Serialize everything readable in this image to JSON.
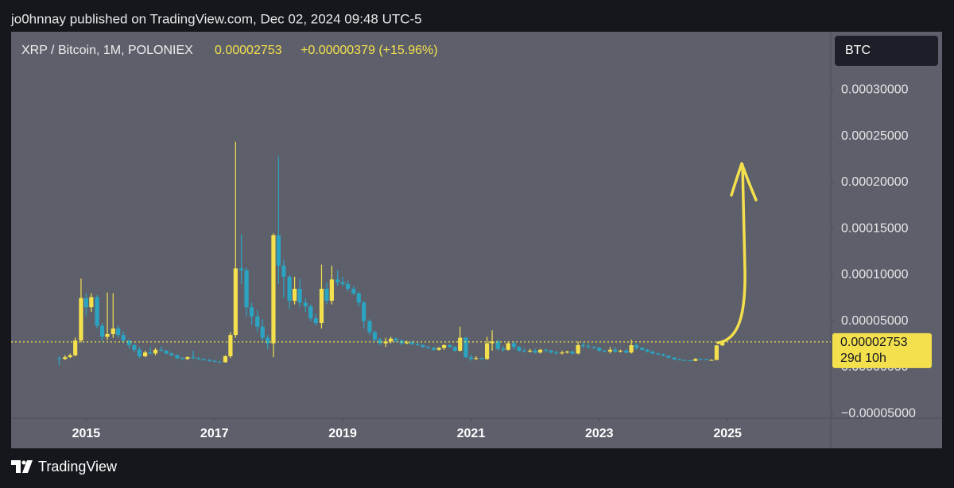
{
  "header": {
    "published": "jo0hnnay published on TradingView.com, Dec 02, 2024 09:48 UTC-5"
  },
  "footer": {
    "brand": "TradingView"
  },
  "chart_data": {
    "type": "candlestick",
    "symbol": "XRP / Bitcoin, 1M, POLONIEX",
    "last_price": "0.00002753",
    "change": "+0.00000379 (+15.96%)",
    "countdown": "29d 10h",
    "currency": "BTC",
    "up_color": "#f4e04d",
    "down_color": "#2ba4c2",
    "xlim": [
      2013.83,
      2026.61
    ],
    "xticks": [
      2015,
      2017,
      2019,
      2021,
      2023,
      2025
    ],
    "ylim": [
      -5.5e-05,
      0.000363
    ],
    "yticks": [
      {
        "value": 0.0003,
        "label": "0.00030000"
      },
      {
        "value": 0.00025,
        "label": "0.00025000"
      },
      {
        "value": 0.0002,
        "label": "0.00020000"
      },
      {
        "value": 0.00015,
        "label": "0.00015000"
      },
      {
        "value": 0.0001,
        "label": "0.00010000"
      },
      {
        "value": 5e-05,
        "label": "0.00005000"
      },
      {
        "value": 0,
        "label": "0.00000000"
      },
      {
        "value": -5e-05,
        "label": "−0.00005000"
      }
    ],
    "x": [
      2014.58,
      2014.67,
      2014.75,
      2014.83,
      2014.92,
      2015,
      2015.08,
      2015.17,
      2015.25,
      2015.33,
      2015.42,
      2015.5,
      2015.58,
      2015.67,
      2015.75,
      2015.83,
      2015.92,
      2016,
      2016.08,
      2016.17,
      2016.25,
      2016.33,
      2016.42,
      2016.5,
      2016.58,
      2016.67,
      2016.75,
      2016.83,
      2016.92,
      2017,
      2017.08,
      2017.17,
      2017.25,
      2017.33,
      2017.42,
      2017.5,
      2017.58,
      2017.67,
      2017.75,
      2017.83,
      2017.92,
      2018,
      2018.08,
      2018.17,
      2018.25,
      2018.33,
      2018.42,
      2018.5,
      2018.58,
      2018.67,
      2018.75,
      2018.83,
      2018.92,
      2019,
      2019.08,
      2019.17,
      2019.25,
      2019.33,
      2019.42,
      2019.5,
      2019.58,
      2019.67,
      2019.75,
      2019.83,
      2019.92,
      2020,
      2020.08,
      2020.17,
      2020.25,
      2020.33,
      2020.42,
      2020.5,
      2020.58,
      2020.67,
      2020.75,
      2020.83,
      2020.92,
      2021,
      2021.08,
      2021.17,
      2021.25,
      2021.33,
      2021.42,
      2021.5,
      2021.58,
      2021.67,
      2021.75,
      2021.83,
      2021.92,
      2022,
      2022.08,
      2022.17,
      2022.25,
      2022.33,
      2022.42,
      2022.5,
      2022.58,
      2022.67,
      2022.75,
      2022.83,
      2022.92,
      2023,
      2023.08,
      2023.17,
      2023.25,
      2023.33,
      2023.42,
      2023.5,
      2023.58,
      2023.67,
      2023.75,
      2023.83,
      2023.92,
      2024,
      2024.08,
      2024.17,
      2024.25,
      2024.33,
      2024.42,
      2024.5,
      2024.58,
      2024.67,
      2024.75,
      2024.83,
      2024.92
    ],
    "open": [
      1e-05,
      9e-06,
      1.1e-05,
      1.3e-05,
      2.9e-05,
      7.5e-05,
      6.5e-05,
      7.6e-05,
      4.5e-05,
      3.3e-05,
      3.6e-05,
      4.2e-05,
      3.5e-05,
      2.9e-05,
      2.4e-05,
      1.9e-05,
      1.2e-05,
      1.6e-05,
      1.5e-05,
      1.9e-05,
      1.8e-05,
      1.5e-05,
      1.3e-05,
      1e-05,
      9e-06,
      1.1e-05,
      1e-05,
      9e-06,
      8e-06,
      7e-06,
      6e-06,
      5.5e-06,
      1.2e-05,
      3.5e-05,
      0.000107,
      0.000105,
      6.5e-05,
      5.5e-05,
      4.4e-05,
      3.2e-05,
      2.6e-05,
      0.000143,
      0.00011,
      9.8e-05,
      7.2e-05,
      8.5e-05,
      7e-05,
      6.6e-05,
      5.3e-05,
      4.8e-05,
      8.5e-05,
      7.2e-05,
      9.5e-05,
      9.2e-05,
      9e-05,
      8.5e-05,
      8e-05,
      7e-05,
      5e-05,
      3.8e-05,
      3e-05,
      2.6e-05,
      2.8e-05,
      3.1e-05,
      2.9e-05,
      2.6e-05,
      2.7e-05,
      2.5e-05,
      2.4e-05,
      2.2e-05,
      2.1e-05,
      1.9e-05,
      2.1e-05,
      2.4e-05,
      2.2e-05,
      1.8e-05,
      3.2e-05,
      1.1e-05,
      9e-06,
      1e-05,
      9e-06,
      2.6e-05,
      2.8e-05,
      2e-05,
      1.9e-05,
      2.6e-05,
      2.2e-05,
      1.8e-05,
      1.7e-05,
      1.8e-05,
      1.6e-05,
      1.9e-05,
      1.8e-05,
      1.6e-05,
      1.5e-05,
      1.6e-05,
      1.7e-05,
      1.5e-05,
      2.4e-05,
      2.3e-05,
      2.2e-05,
      2.1e-05,
      1.8e-05,
      1.7e-05,
      1.9e-05,
      1.7e-05,
      1.8e-05,
      1.6e-05,
      2.4e-05,
      2.1e-05,
      1.9e-05,
      1.7e-05,
      1.5e-05,
      1.4e-05,
      1.25e-05,
      1.05e-05,
      8.5e-06,
      8e-06,
      7.5e-06,
      7e-06,
      9e-06,
      8.5e-06,
      8e-06,
      8e-06,
      2.374e-05
    ],
    "high": [
      1.2e-05,
      1.3e-05,
      1.5e-05,
      3.2e-05,
      9.6e-05,
      8e-05,
      8e-05,
      7.8e-05,
      4.8e-05,
      8.1e-05,
      8e-05,
      4.5e-05,
      3.9e-05,
      3e-05,
      2.6e-05,
      2.2e-05,
      1.8e-05,
      2.2e-05,
      2.1e-05,
      2.3e-05,
      1.9e-05,
      1.6e-05,
      1.4e-05,
      1.1e-05,
      1.2e-05,
      1.8e-05,
      1.1e-05,
      1e-05,
      9e-06,
      8e-06,
      7e-06,
      1.3e-05,
      3.8e-05,
      0.000244,
      0.000144,
      0.000108,
      7e-05,
      6.2e-05,
      5.2e-05,
      3.5e-05,
      0.000145,
      0.000228,
      0.000116,
      0.0001,
      9.8e-05,
      9.6e-05,
      7.5e-05,
      6.8e-05,
      5.8e-05,
      0.000111,
      9.2e-05,
      0.00011,
      0.000105,
      9.8e-05,
      9.4e-05,
      8.8e-05,
      8.2e-05,
      7.2e-05,
      5.2e-05,
      4e-05,
      3.2e-05,
      3.2e-05,
      3.3e-05,
      3.2e-05,
      3e-05,
      2.9e-05,
      2.9e-05,
      2.7e-05,
      2.5e-05,
      2.3e-05,
      2.2e-05,
      2.2e-05,
      2.5e-05,
      2.5e-05,
      2.3e-05,
      4.4e-05,
      3.3e-05,
      1.4e-05,
      1.2e-05,
      1.1e-05,
      3.3e-05,
      4e-05,
      3e-05,
      2.3e-05,
      2.8e-05,
      2.8e-05,
      2.3e-05,
      2.1e-05,
      2e-05,
      2e-05,
      2e-05,
      2e-05,
      1.9e-05,
      1.8e-05,
      1.8e-05,
      1.8e-05,
      1.8e-05,
      2.8e-05,
      2.7e-05,
      2.6e-05,
      2.3e-05,
      2.2e-05,
      1.9e-05,
      2.2e-05,
      2.2e-05,
      1.9e-05,
      2e-05,
      3e-05,
      2.6e-05,
      2.2e-05,
      2e-05,
      1.8e-05,
      1.6e-05,
      1.5e-05,
      1.3e-05,
      1.1e-05,
      9.5e-06,
      8.5e-06,
      8e-06,
      1e-05,
      1e-05,
      9.5e-06,
      8.5e-06,
      2.4e-05,
      2.9e-05
    ],
    "low": [
      2e-06,
      8e-06,
      1e-05,
      1.2e-05,
      2.7e-05,
      5.5e-05,
      6e-05,
      4.2e-05,
      2.8e-05,
      3e-05,
      3.2e-05,
      3.2e-05,
      2.6e-05,
      2e-05,
      1.6e-05,
      1e-05,
      1.1e-05,
      1.4e-05,
      1.3e-05,
      1.7e-05,
      1.4e-05,
      1.2e-05,
      9e-06,
      8e-06,
      8e-06,
      9e-06,
      8e-06,
      7e-06,
      6e-06,
      5.5e-06,
      5e-06,
      5e-06,
      1e-05,
      3.2e-05,
      9e-05,
      5.5e-05,
      4.6e-05,
      3.8e-05,
      2.7e-05,
      2e-05,
      1.1e-05,
      9e-05,
      7.5e-05,
      6.3e-05,
      6.8e-05,
      6.5e-05,
      6e-05,
      5e-05,
      4.5e-05,
      4.2e-05,
      6.8e-05,
      6.8e-05,
      8.8e-05,
      8.8e-05,
      8.2e-05,
      7.8e-05,
      6.6e-05,
      4.2e-05,
      3.5e-05,
      2.8e-05,
      2.4e-05,
      2.2e-05,
      2.6e-05,
      2.7e-05,
      2.4e-05,
      2.5e-05,
      2.4e-05,
      2.3e-05,
      2.1e-05,
      2e-05,
      1.8e-05,
      1.8e-05,
      1.9e-05,
      2.1e-05,
      1.7e-05,
      1.7e-05,
      1e-05,
      7e-06,
      8e-06,
      8e-06,
      8e-06,
      1.8e-05,
      1.8e-05,
      1.7e-05,
      1.8e-05,
      1.9e-05,
      1.7e-05,
      1.6e-05,
      1.6e-05,
      1.5e-05,
      1.5e-05,
      1.6e-05,
      1.5e-05,
      1.4e-05,
      1.4e-05,
      1.5e-05,
      1.4e-05,
      1.4e-05,
      2.1e-05,
      2e-05,
      2e-05,
      1.7e-05,
      1.6e-05,
      1.5e-05,
      1.6e-05,
      1.6e-05,
      1.5e-05,
      1.5e-05,
      1.9e-05,
      1.8e-05,
      1.6e-05,
      1.4e-05,
      1.3e-05,
      1.2e-05,
      1e-05,
      8e-06,
      7.5e-06,
      7e-06,
      6.5e-06,
      6.5e-06,
      8e-06,
      7.5e-06,
      7.5e-06,
      7.5e-06,
      2.3e-05
    ],
    "close": [
      9e-06,
      1.1e-05,
      1.3e-05,
      2.9e-05,
      7.5e-05,
      6.5e-05,
      7.6e-05,
      4.5e-05,
      3.3e-05,
      3.6e-05,
      4.2e-05,
      3.5e-05,
      2.9e-05,
      2.4e-05,
      1.9e-05,
      1.2e-05,
      1.6e-05,
      1.5e-05,
      1.9e-05,
      1.8e-05,
      1.5e-05,
      1.3e-05,
      1e-05,
      9e-06,
      1.1e-05,
      1e-05,
      9e-06,
      8e-06,
      7e-06,
      6e-06,
      5.5e-06,
      1.2e-05,
      3.5e-05,
      0.000107,
      0.000105,
      6.5e-05,
      5.5e-05,
      4.4e-05,
      3.2e-05,
      2.6e-05,
      0.000143,
      0.00011,
      9.8e-05,
      7.2e-05,
      8.5e-05,
      7e-05,
      6.6e-05,
      5.3e-05,
      4.8e-05,
      8.5e-05,
      7.2e-05,
      9.5e-05,
      9.2e-05,
      9e-05,
      8.5e-05,
      8e-05,
      7e-05,
      5e-05,
      3.8e-05,
      3e-05,
      2.6e-05,
      2.8e-05,
      3.1e-05,
      2.9e-05,
      2.6e-05,
      2.7e-05,
      2.5e-05,
      2.4e-05,
      2.2e-05,
      2.1e-05,
      1.9e-05,
      2.1e-05,
      2.4e-05,
      2.2e-05,
      1.8e-05,
      3.2e-05,
      1.1e-05,
      9e-06,
      1e-05,
      9e-06,
      2.6e-05,
      2.8e-05,
      2e-05,
      1.9e-05,
      2.6e-05,
      2.2e-05,
      1.8e-05,
      1.7e-05,
      1.8e-05,
      1.6e-05,
      1.9e-05,
      1.8e-05,
      1.6e-05,
      1.5e-05,
      1.6e-05,
      1.7e-05,
      1.5e-05,
      2.4e-05,
      2.3e-05,
      2.2e-05,
      2.1e-05,
      1.8e-05,
      1.7e-05,
      1.9e-05,
      1.7e-05,
      1.8e-05,
      1.6e-05,
      2.4e-05,
      2.1e-05,
      1.9e-05,
      1.7e-05,
      1.5e-05,
      1.4e-05,
      1.25e-05,
      1.05e-05,
      8.5e-06,
      8e-06,
      7.5e-06,
      7e-06,
      9e-06,
      8.5e-06,
      8e-06,
      8e-06,
      2.374e-05,
      2.753e-05
    ]
  }
}
